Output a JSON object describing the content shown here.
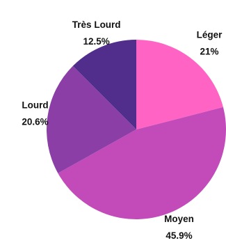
{
  "chart_data": {
    "type": "pie",
    "title": "",
    "slices": [
      {
        "label": "Léger",
        "value": 21,
        "display": "21%",
        "color": "#ff63c4"
      },
      {
        "label": "Moyen",
        "value": 45.9,
        "display": "45.9%",
        "color": "#c24ab9"
      },
      {
        "label": "Lourd",
        "value": 20.6,
        "display": "20.6%",
        "color": "#8b3fa6"
      },
      {
        "label": "Très Lourd",
        "value": 12.5,
        "display": "12.5%",
        "color": "#512d8c"
      }
    ],
    "start_angle_deg": 0,
    "direction": "clockwise",
    "legend": "none"
  }
}
